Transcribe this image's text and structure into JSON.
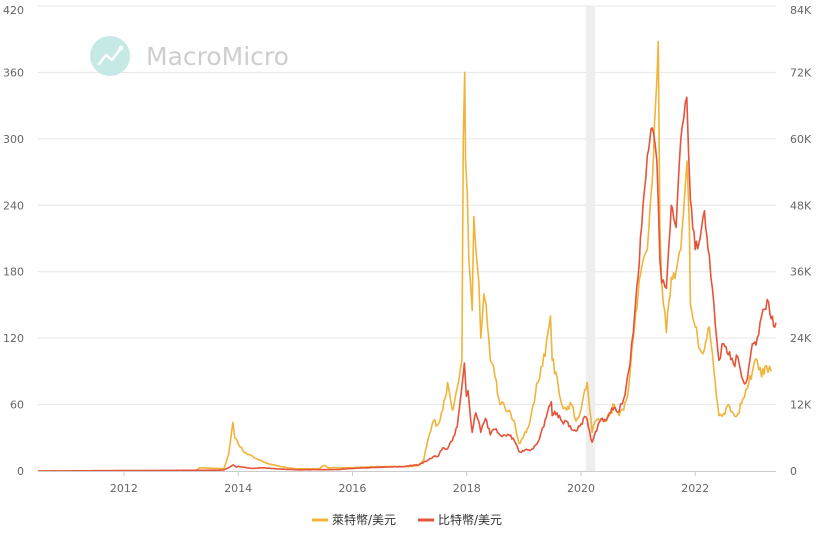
{
  "watermark": {
    "text": "MacroMicro",
    "icon": "macromicro-logo-icon"
  },
  "chart_data": {
    "type": "line",
    "x_axis": {
      "ticks": [
        "2012",
        "2014",
        "2016",
        "2018",
        "2020",
        "2022"
      ],
      "range": [
        "2010-07",
        "2023-06"
      ]
    },
    "y_left": {
      "ticks": [
        "0",
        "60",
        "120",
        "180",
        "240",
        "300",
        "360",
        "420"
      ],
      "range": [
        0,
        420
      ]
    },
    "y_right": {
      "ticks": [
        "0",
        "12K",
        "24K",
        "36K",
        "48K",
        "60K",
        "72K",
        "84K"
      ],
      "range": [
        0,
        84000
      ]
    },
    "grid": true,
    "legend_position": "bottom-center",
    "shaded_region": {
      "from": "2020-02",
      "to": "2020-04",
      "color": "#eeeeee"
    },
    "series": [
      {
        "name": "萊特幣/美元",
        "axis": "left",
        "color": "#f0b43a",
        "points": [
          [
            "2010-07",
            0
          ],
          [
            "2013-04",
            0
          ],
          [
            "2013-05",
            3
          ],
          [
            "2013-10",
            2
          ],
          [
            "2013-11",
            15
          ],
          [
            "2013-11-28",
            44
          ],
          [
            "2013-12-10",
            30
          ],
          [
            "2014-01",
            25
          ],
          [
            "2014-02",
            18
          ],
          [
            "2014-03",
            15
          ],
          [
            "2014-05",
            11
          ],
          [
            "2014-07",
            7
          ],
          [
            "2014-10",
            4
          ],
          [
            "2015-01",
            2
          ],
          [
            "2015-06",
            2
          ],
          [
            "2015-07",
            5
          ],
          [
            "2015-08",
            3
          ],
          [
            "2016-01",
            3
          ],
          [
            "2016-06",
            4
          ],
          [
            "2016-12",
            4
          ],
          [
            "2017-01",
            4
          ],
          [
            "2017-03",
            5
          ],
          [
            "2017-04",
            10
          ],
          [
            "2017-05",
            30
          ],
          [
            "2017-06",
            45
          ],
          [
            "2017-07",
            42
          ],
          [
            "2017-08",
            55
          ],
          [
            "2017-09",
            80
          ],
          [
            "2017-10",
            55
          ],
          [
            "2017-11",
            75
          ],
          [
            "2017-12-01",
            100
          ],
          [
            "2017-12-10",
            300
          ],
          [
            "2017-12-19",
            360
          ],
          [
            "2017-12-25",
            280
          ],
          [
            "2018-01-05",
            250
          ],
          [
            "2018-01-15",
            190
          ],
          [
            "2018-01-25",
            170
          ],
          [
            "2018-02-05",
            145
          ],
          [
            "2018-02-15",
            230
          ],
          [
            "2018-03-01",
            200
          ],
          [
            "2018-03-20",
            170
          ],
          [
            "2018-04-01",
            120
          ],
          [
            "2018-04-20",
            160
          ],
          [
            "2018-05-05",
            150
          ],
          [
            "2018-06",
            100
          ],
          [
            "2018-07",
            85
          ],
          [
            "2018-08",
            60
          ],
          [
            "2018-09",
            58
          ],
          [
            "2018-10",
            55
          ],
          [
            "2018-11",
            45
          ],
          [
            "2018-12",
            25
          ],
          [
            "2019-01",
            32
          ],
          [
            "2019-02",
            40
          ],
          [
            "2019-03",
            60
          ],
          [
            "2019-04",
            80
          ],
          [
            "2019-05",
            95
          ],
          [
            "2019-06-10",
            130
          ],
          [
            "2019-06-20",
            140
          ],
          [
            "2019-07",
            100
          ],
          [
            "2019-08",
            85
          ],
          [
            "2019-09",
            60
          ],
          [
            "2019-10",
            55
          ],
          [
            "2019-11",
            60
          ],
          [
            "2019-12",
            45
          ],
          [
            "2020-01",
            55
          ],
          [
            "2020-02-10",
            80
          ],
          [
            "2020-03-12",
            35
          ],
          [
            "2020-04",
            45
          ],
          [
            "2020-05",
            45
          ],
          [
            "2020-06",
            45
          ],
          [
            "2020-07",
            50
          ],
          [
            "2020-08",
            60
          ],
          [
            "2020-09",
            50
          ],
          [
            "2020-10",
            55
          ],
          [
            "2020-11",
            75
          ],
          [
            "2020-12",
            120
          ],
          [
            "2021-01",
            160
          ],
          [
            "2021-02",
            190
          ],
          [
            "2021-03",
            200
          ],
          [
            "2021-04",
            260
          ],
          [
            "2021-05-10",
            388
          ],
          [
            "2021-05-20",
            220
          ],
          [
            "2021-06",
            170
          ],
          [
            "2021-07",
            125
          ],
          [
            "2021-08",
            175
          ],
          [
            "2021-09",
            180
          ],
          [
            "2021-10",
            200
          ],
          [
            "2021-11-10",
            280
          ],
          [
            "2021-11-25",
            220
          ],
          [
            "2021-12",
            150
          ],
          [
            "2022-01",
            130
          ],
          [
            "2022-02",
            110
          ],
          [
            "2022-03",
            110
          ],
          [
            "2022-04",
            130
          ],
          [
            "2022-05",
            90
          ],
          [
            "2022-06",
            50
          ],
          [
            "2022-07",
            52
          ],
          [
            "2022-08",
            60
          ],
          [
            "2022-09",
            52
          ],
          [
            "2022-10",
            52
          ],
          [
            "2022-11",
            65
          ],
          [
            "2022-12",
            75
          ],
          [
            "2023-01",
            90
          ],
          [
            "2023-02",
            100
          ],
          [
            "2023-03",
            85
          ],
          [
            "2023-04",
            95
          ],
          [
            "2023-05",
            90
          ]
        ]
      },
      {
        "name": "比特幣/美元",
        "axis": "right",
        "color": "#e5533a",
        "points": [
          [
            "2010-07",
            0
          ],
          [
            "2013-09",
            150
          ],
          [
            "2013-10",
            200
          ],
          [
            "2013-11",
            600
          ],
          [
            "2013-11-30",
            1100
          ],
          [
            "2013-12-20",
            700
          ],
          [
            "2014-01",
            850
          ],
          [
            "2014-02",
            700
          ],
          [
            "2014-04",
            450
          ],
          [
            "2014-06",
            600
          ],
          [
            "2014-09",
            400
          ],
          [
            "2015-01",
            230
          ],
          [
            "2015-06",
            240
          ],
          [
            "2015-10",
            260
          ],
          [
            "2015-12",
            430
          ],
          [
            "2016-06",
            650
          ],
          [
            "2016-12",
            800
          ],
          [
            "2017-01",
            950
          ],
          [
            "2017-03",
            1100
          ],
          [
            "2017-05",
            2000
          ],
          [
            "2017-06",
            2600
          ],
          [
            "2017-07",
            2600
          ],
          [
            "2017-08",
            4200
          ],
          [
            "2017-09",
            4000
          ],
          [
            "2017-10",
            5500
          ],
          [
            "2017-11",
            8000
          ],
          [
            "2017-12-17",
            19500
          ],
          [
            "2017-12-30",
            13500
          ],
          [
            "2018-01-10",
            14500
          ],
          [
            "2018-02-05",
            7000
          ],
          [
            "2018-03-01",
            10500
          ],
          [
            "2018-04-01",
            7000
          ],
          [
            "2018-05-01",
            9500
          ],
          [
            "2018-06",
            6500
          ],
          [
            "2018-07",
            7500
          ],
          [
            "2018-08",
            6500
          ],
          [
            "2018-09",
            6500
          ],
          [
            "2018-10",
            6400
          ],
          [
            "2018-11",
            5500
          ],
          [
            "2018-12",
            3500
          ],
          [
            "2019-01",
            3600
          ],
          [
            "2019-02",
            3800
          ],
          [
            "2019-03",
            4000
          ],
          [
            "2019-04",
            5200
          ],
          [
            "2019-05",
            7800
          ],
          [
            "2019-06-26",
            12500
          ],
          [
            "2019-07",
            10000
          ],
          [
            "2019-08",
            10500
          ],
          [
            "2019-09",
            9000
          ],
          [
            "2019-10",
            9000
          ],
          [
            "2019-11",
            7500
          ],
          [
            "2019-12",
            7200
          ],
          [
            "2020-01",
            8500
          ],
          [
            "2020-02",
            9800
          ],
          [
            "2020-03-12",
            5200
          ],
          [
            "2020-04",
            7000
          ],
          [
            "2020-05",
            9000
          ],
          [
            "2020-06",
            9300
          ],
          [
            "2020-07",
            10500
          ],
          [
            "2020-08",
            11500
          ],
          [
            "2020-09",
            10700
          ],
          [
            "2020-10",
            13000
          ],
          [
            "2020-11",
            18000
          ],
          [
            "2020-12",
            25000
          ],
          [
            "2021-01",
            35000
          ],
          [
            "2021-02",
            48000
          ],
          [
            "2021-03",
            57000
          ],
          [
            "2021-04",
            62000
          ],
          [
            "2021-05-01",
            56000
          ],
          [
            "2021-05-20",
            38000
          ],
          [
            "2021-06",
            34000
          ],
          [
            "2021-07",
            33000
          ],
          [
            "2021-08",
            48000
          ],
          [
            "2021-09",
            44000
          ],
          [
            "2021-10",
            60000
          ],
          [
            "2021-11-08",
            67500
          ],
          [
            "2021-12",
            49000
          ],
          [
            "2022-01",
            40000
          ],
          [
            "2022-02",
            42000
          ],
          [
            "2022-03",
            47000
          ],
          [
            "2022-04",
            39000
          ],
          [
            "2022-05",
            30000
          ],
          [
            "2022-06",
            20000
          ],
          [
            "2022-07",
            23000
          ],
          [
            "2022-08",
            21000
          ],
          [
            "2022-09",
            19500
          ],
          [
            "2022-10",
            20500
          ],
          [
            "2022-11",
            16500
          ],
          [
            "2022-12",
            16800
          ],
          [
            "2023-01",
            23000
          ],
          [
            "2023-02",
            24000
          ],
          [
            "2023-03",
            28000
          ],
          [
            "2023-04-15",
            30500
          ],
          [
            "2023-05",
            27500
          ],
          [
            "2023-06",
            26800
          ]
        ]
      }
    ]
  }
}
